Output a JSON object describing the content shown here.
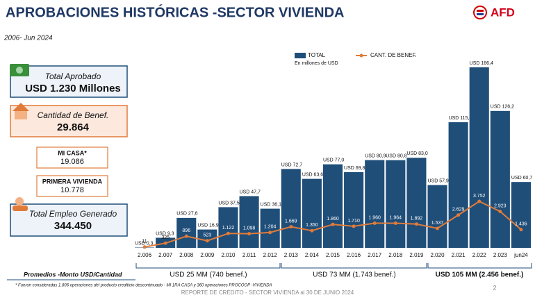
{
  "header": {
    "title": "APROBACIONES HISTÓRICAS -SECTOR VIVIENDA",
    "period": "2006- Jun 2024",
    "logo": "AFD"
  },
  "kpis": [
    {
      "label": "Total Aprobado",
      "value": "USD  1.230 Millones"
    },
    {
      "label": "Cantidad de Benef.",
      "value": "29.864"
    },
    {
      "label": "MI CASA*",
      "value": "19.086"
    },
    {
      "label": "PRIMERA VIVIENDA",
      "value": "10.778"
    },
    {
      "label": "Total Empleo Generado",
      "value": "344.450"
    }
  ],
  "chart_data": {
    "type": "bar",
    "categories": [
      "2.006",
      "2.007",
      "2.008",
      "2.009",
      "2.010",
      "2.011",
      "2.012",
      "2.013",
      "2.014",
      "2.015",
      "2.016",
      "2.017",
      "2.018",
      "2.019",
      "2.020",
      "2.021",
      "2.022",
      "2.023",
      "jun24"
    ],
    "legend_note": "En millones de USD",
    "series": [
      {
        "name": "TOTAL",
        "type": "bar",
        "color": "#1f4e79",
        "values": [
          0.3,
          9.3,
          27.6,
          16.9,
          37.5,
          47.7,
          36.1,
          72.7,
          63.6,
          77.0,
          69.8,
          80.9,
          80.8,
          83.0,
          57.9,
          115.8,
          166.4,
          126.2,
          60.7
        ],
        "value_labels": [
          "USD 0,3",
          "USD 9,3",
          "USD 27,6",
          "USD 16,9",
          "USD 37,5",
          "USD 47,7",
          "USD 36,1",
          "USD 72,7",
          "USD 63,6",
          "USD 77,0",
          "USD 69,8",
          "USD 80,9",
          "USD 80,8",
          "USD 83,0",
          "USD 57,9",
          "USD 115,8",
          "USD 166,4",
          "USD 126,2",
          "USD 60,7"
        ]
      },
      {
        "name": "CANT. DE BENEF.",
        "type": "line",
        "axis": "y2",
        "color": "#e07b39",
        "values": [
          11,
          325,
          896,
          523,
          1122,
          1098,
          1204,
          1669,
          1350,
          1860,
          1710,
          1960,
          1964,
          1892,
          1537,
          2629,
          3752,
          2923,
          1436
        ],
        "value_labels": [
          "11",
          "325",
          "896",
          "523",
          "1.122",
          "1.098",
          "1.204",
          "1.669",
          "1.350",
          "1.860",
          "1.710",
          "1.960",
          "1.964",
          "1.892",
          "1.537",
          "2.629",
          "3.752",
          "2.923",
          "1.436"
        ]
      }
    ]
  },
  "averages": {
    "label": "Promedios -Monto USD/Cantidad",
    "periods": [
      "USD 25 MM (740 benef.)",
      "USD 73 MM  (1.743 benef.)",
      "USD 105 MM (2.456 benef.)"
    ]
  },
  "footnote": "* Fueron consideradas 1.806 operaciones del producto crediticio descontinuado - MI 1RA CASA  y 360 operaciones PROCOOP -VIVIENDA",
  "footer": "REPORTE DE CRÉDITO - SECTOR VIVIENDA al 30 DE JUNIO 2024",
  "page": "2"
}
